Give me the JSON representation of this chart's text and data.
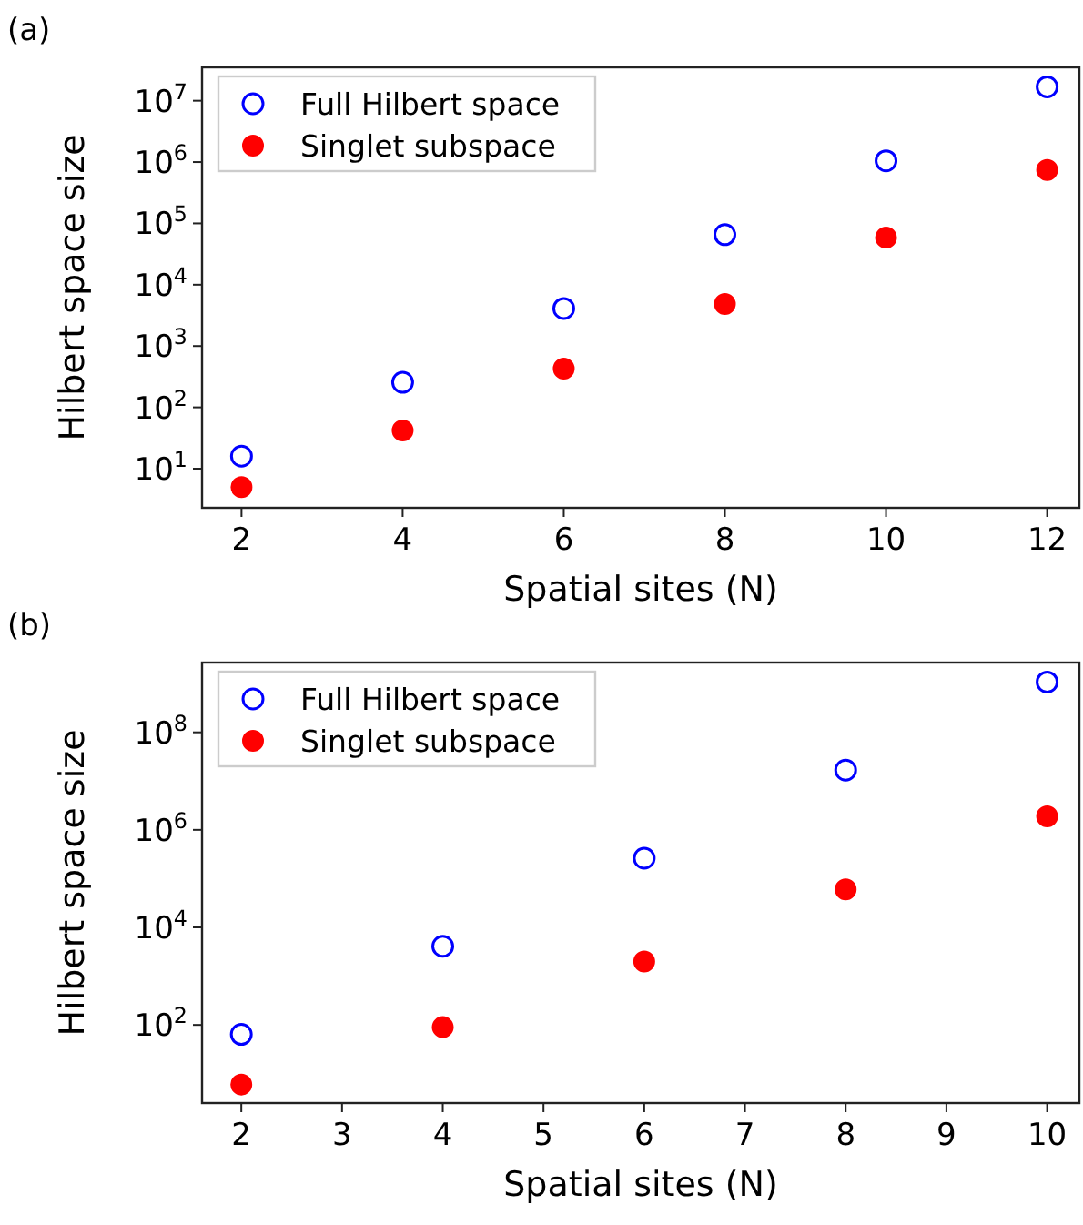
{
  "chart_data": [
    {
      "type": "scatter",
      "title": "(a)",
      "xlabel": "Spatial sites (N)",
      "ylabel": "Hilbert space size",
      "x": [
        2,
        4,
        6,
        8,
        10,
        12
      ],
      "log": "y",
      "legend": "top left",
      "xlim": [
        1.51,
        12.4
      ],
      "xticks": [
        2,
        4,
        6,
        8,
        10,
        12
      ],
      "ylim": [
        2.3,
        35000000
      ],
      "yticks": [
        {
          "value": 10,
          "label": "10$^{1}$"
        },
        {
          "value": 100,
          "label": "10$^{2}$"
        },
        {
          "value": 1000,
          "label": "10$^{3}$"
        },
        {
          "value": 10000,
          "label": "10$^{4}$"
        },
        {
          "value": 100000,
          "label": "10$^{5}$"
        },
        {
          "value": 1000000,
          "label": "10$^{6}$"
        },
        {
          "value": 10000000,
          "label": "10$^{7}$"
        }
      ],
      "series": [
        {
          "name": "Full Hilbert space",
          "color": "#0000ff",
          "marker": "circle-open",
          "values": [
            16,
            256,
            4096,
            65536,
            1048576,
            16777216
          ]
        },
        {
          "name": "Singlet subspace",
          "color": "#ff0000",
          "marker": "circle",
          "values": [
            5,
            42,
            429,
            4862,
            58786,
            742900
          ]
        }
      ]
    },
    {
      "type": "scatter",
      "title": "(b)",
      "xlabel": "Spatial sites (N)",
      "ylabel": "Hilbert space size",
      "x": [
        2,
        4,
        6,
        8,
        10
      ],
      "log": "y",
      "legend": "top left",
      "xlim": [
        1.61,
        10.32
      ],
      "xticks": [
        2,
        3,
        4,
        5,
        6,
        7,
        8,
        9,
        10
      ],
      "ylim": [
        2.5,
        2700000000
      ],
      "yticks": [
        {
          "value": 100,
          "label": "10$^{2}$"
        },
        {
          "value": 10000,
          "label": "10$^{4}$"
        },
        {
          "value": 1000000,
          "label": "10$^{6}$"
        },
        {
          "value": 100000000,
          "label": "10$^{8}$"
        }
      ],
      "series": [
        {
          "name": "Full Hilbert space",
          "color": "#0000ff",
          "marker": "circle-open",
          "values": [
            64,
            4096,
            262144,
            16777216,
            1073741824
          ]
        },
        {
          "name": "Singlet subspace",
          "color": "#ff0000",
          "marker": "circle",
          "values": [
            6,
            90,
            2000,
            60000,
            1900000
          ]
        }
      ]
    }
  ]
}
